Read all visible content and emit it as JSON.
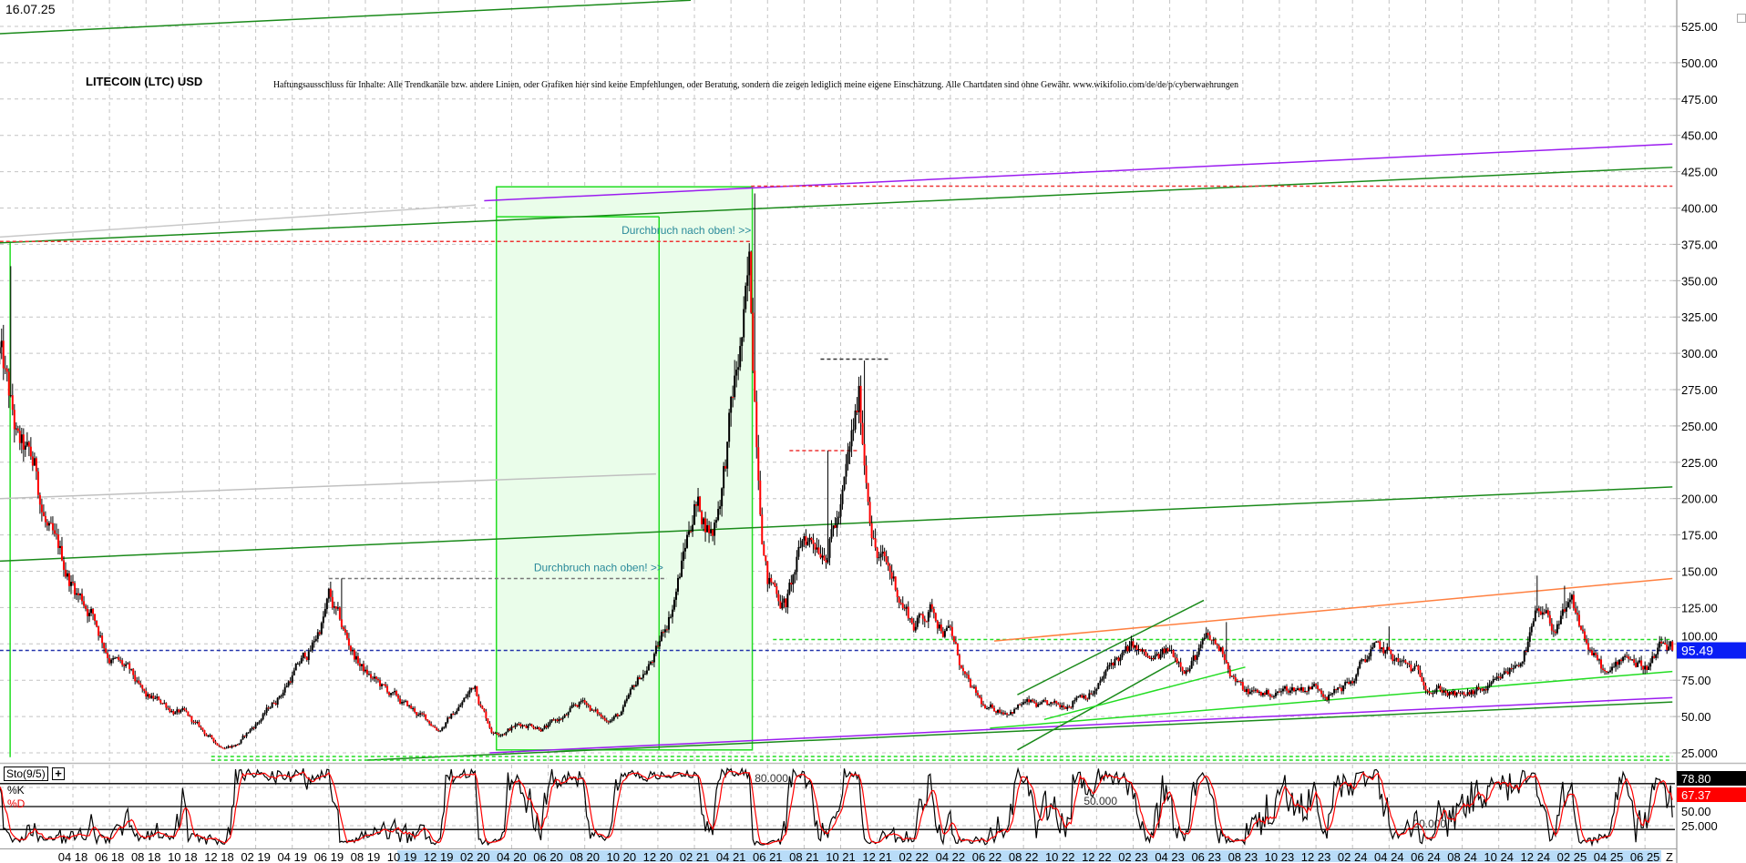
{
  "header": {
    "date": "16.07.25",
    "title": "LITECOIN (LTC) USD",
    "disclaimer": "Haftungsausschluss für Inhalte: Alle Trendkanäle bzw. andere Linien, oder Grafiken hier sind keine Empfehlungen, oder Beratung, sondern die zeigen lediglich meine eigene Einschätzung. Alle Chartdaten sind ohne Gewähr.  www.wikifolio.com/de/de/p/cyberwaehrungen"
  },
  "indicator": {
    "name": "Sto(9/5)",
    "plus": "+",
    "k_label": "%K",
    "d_label": "%D",
    "levels": [
      {
        "value": 80,
        "label": "80.000",
        "at": "2021-05-10"
      },
      {
        "value": 50,
        "label": "50.000",
        "at": "2022-11-10"
      },
      {
        "value": 20,
        "label": "20.000",
        "at": "2024-05-10"
      }
    ],
    "axis_labels": [
      "50.00",
      "25.000"
    ],
    "k_value": "78.80",
    "d_value": "67.37"
  },
  "chart_data": {
    "type": "candlestick",
    "title": "LITECOIN (LTC) USD",
    "ylim": [
      15,
      535
    ],
    "y_ticks": [
      "525.00",
      "500.00",
      "475.00",
      "450.00",
      "425.00",
      "400.00",
      "375.00",
      "350.00",
      "325.00",
      "300.00",
      "275.00",
      "250.00",
      "225.00",
      "200.00",
      "175.00",
      "150.00",
      "125.00",
      "100.00",
      "75.00",
      "50.00",
      "25.000"
    ],
    "x_ticks": [
      "04 18",
      "06 18",
      "08 18",
      "10 18",
      "12 18",
      "02 19",
      "04 19",
      "06 19",
      "08 19",
      "10 19",
      "12 19",
      "02 20",
      "04 20",
      "06 20",
      "08 20",
      "10 20",
      "12 20",
      "02 21",
      "04 21",
      "06 21",
      "08 21",
      "10 21",
      "12 21",
      "02 22",
      "04 22",
      "06 22",
      "08 22",
      "10 22",
      "12 22",
      "02 23",
      "04 23",
      "06 23",
      "08 23",
      "10 23",
      "12 23",
      "02 24",
      "04 24",
      "06 24",
      "08 24",
      "10 24",
      "12 24",
      "02 25",
      "04 25",
      "06 25"
    ],
    "x_end_label": "Z",
    "grid": true,
    "last_price": "95.49",
    "months": [
      "2017-12",
      "2018-01",
      "2018-02",
      "2018-03",
      "2018-04",
      "2018-05",
      "2018-06",
      "2018-07",
      "2018-08",
      "2018-09",
      "2018-10",
      "2018-11",
      "2018-12",
      "2019-01",
      "2019-02",
      "2019-03",
      "2019-04",
      "2019-05",
      "2019-06",
      "2019-07",
      "2019-08",
      "2019-09",
      "2019-10",
      "2019-11",
      "2019-12",
      "2020-01",
      "2020-02",
      "2020-03",
      "2020-04",
      "2020-05",
      "2020-06",
      "2020-07",
      "2020-08",
      "2020-09",
      "2020-10",
      "2020-11",
      "2020-12",
      "2021-01",
      "2021-02",
      "2021-03",
      "2021-04",
      "2021-05",
      "2021-06",
      "2021-07",
      "2021-08",
      "2021-09",
      "2021-10",
      "2021-11",
      "2021-12",
      "2022-01",
      "2022-02",
      "2022-03",
      "2022-04",
      "2022-05",
      "2022-06",
      "2022-07",
      "2022-08",
      "2022-09",
      "2022-10",
      "2022-11",
      "2022-12",
      "2023-01",
      "2023-02",
      "2023-03",
      "2023-04",
      "2023-05",
      "2023-06",
      "2023-07",
      "2023-08",
      "2023-09",
      "2023-10",
      "2023-11",
      "2023-12",
      "2024-01",
      "2024-02",
      "2024-03",
      "2024-04",
      "2024-05",
      "2024-06",
      "2024-07",
      "2024-08",
      "2024-09",
      "2024-10",
      "2024-11",
      "2024-12",
      "2025-01",
      "2025-02",
      "2025-03",
      "2025-04",
      "2025-05",
      "2025-06",
      "2025-07"
    ],
    "close": [
      300,
      230,
      210,
      160,
      140,
      125,
      95,
      80,
      60,
      58,
      52,
      40,
      30,
      32,
      45,
      60,
      80,
      95,
      130,
      100,
      80,
      68,
      58,
      50,
      42,
      55,
      72,
      40,
      44,
      46,
      44,
      50,
      60,
      48,
      52,
      75,
      95,
      140,
      200,
      180,
      260,
      340,
      150,
      130,
      170,
      175,
      195,
      260,
      165,
      140,
      115,
      125,
      110,
      70,
      52,
      55,
      60,
      55,
      54,
      68,
      70,
      88,
      95,
      85,
      92,
      88,
      100,
      92,
      68,
      65,
      67,
      70,
      72,
      68,
      75,
      95,
      90,
      82,
      75,
      70,
      62,
      66,
      70,
      85,
      115,
      110,
      120,
      95,
      75,
      95,
      85,
      95.49
    ],
    "peaks": [
      [
        "2017-12-19",
        360
      ],
      [
        "2019-06-22",
        145
      ],
      [
        "2021-05-10",
        410
      ],
      [
        "2021-09-10",
        233
      ],
      [
        "2021-11-10",
        295
      ],
      [
        "2023-07-03",
        115
      ],
      [
        "2024-03-30",
        112
      ],
      [
        "2024-12-05",
        147
      ],
      [
        "2025-01-20",
        140
      ]
    ],
    "trendlines": [
      {
        "from": [
          "2017-12-01",
          520
        ],
        "to": [
          "2021-01-25",
          543
        ],
        "color": "#1a8a1a",
        "style": "solid"
      },
      {
        "from": [
          "2017-12-01",
          376
        ],
        "to": [
          "2025-07-16",
          428
        ],
        "color": "#1a8a1a",
        "style": "solid"
      },
      {
        "from": [
          "2020-02-16",
          405
        ],
        "to": [
          "2025-07-16",
          444
        ],
        "color": "#9b1cf0",
        "style": "solid"
      },
      {
        "from": [
          "2021-05-04",
          415
        ],
        "to": [
          "2025-07-16",
          415
        ],
        "color": "#e33",
        "style": "dashed"
      },
      {
        "from": [
          "2017-12-01",
          377
        ],
        "to": [
          "2021-05-04",
          377
        ],
        "color": "#e33",
        "style": "dashed"
      },
      {
        "from": [
          "2017-12-01",
          380
        ],
        "to": [
          "2020-02-01",
          402
        ],
        "color": "#c8c8c8",
        "style": "solid"
      },
      {
        "from": [
          "2017-12-01",
          200
        ],
        "to": [
          "2020-11-28",
          217
        ],
        "color": "#c0c0c0",
        "style": "solid"
      },
      {
        "from": [
          "2017-12-01",
          157
        ],
        "to": [
          "2025-07-16",
          208
        ],
        "color": "#1a8a1a",
        "style": "solid"
      },
      {
        "from": [
          "2019-06-01",
          145
        ],
        "to": [
          "2020-12-16",
          145
        ],
        "color": "#777",
        "style": "dashed"
      },
      {
        "from": [
          "2021-07-07",
          233
        ],
        "to": [
          "2021-10-28",
          233
        ],
        "color": "#e33",
        "style": "dashed"
      },
      {
        "from": [
          "2021-08-28",
          296
        ],
        "to": [
          "2021-12-22",
          296
        ],
        "color": "#333",
        "style": "dashed"
      },
      {
        "from": [
          "2021-06-10",
          103
        ],
        "to": [
          "2025-07-16",
          103
        ],
        "color": "#22dd22",
        "style": "dashed"
      },
      {
        "from": [
          "2017-12-01",
          95.49
        ],
        "to": [
          "2025-07-16",
          95.49
        ],
        "color": "#2233aa",
        "style": "dashed"
      },
      {
        "from": [
          "2022-06-13",
          102
        ],
        "to": [
          "2025-07-16",
          145
        ],
        "color": "#ff8040",
        "style": "solid"
      },
      {
        "from": [
          "2022-06-06",
          42
        ],
        "to": [
          "2025-07-16",
          81
        ],
        "color": "#22dd22",
        "style": "solid"
      },
      {
        "from": [
          "2020-02-25",
          25
        ],
        "to": [
          "2025-07-16",
          63
        ],
        "color": "#9b1cf0",
        "style": "solid"
      },
      {
        "from": [
          "2019-08-04",
          20
        ],
        "to": [
          "2025-07-16",
          60
        ],
        "color": "#1a8a1a",
        "style": "solid"
      },
      {
        "from": [
          "2018-11-18",
          22.5
        ],
        "to": [
          "2025-07-16",
          22.5
        ],
        "color": "#22dd22",
        "style": "dashed"
      },
      {
        "from": [
          "2018-11-18",
          20
        ],
        "to": [
          "2025-07-16",
          20
        ],
        "color": "#22dd22",
        "style": "dashed"
      },
      {
        "from": [
          "2022-07-21",
          65
        ],
        "to": [
          "2023-05-27",
          130
        ],
        "color": "#1a8a1a",
        "style": "solid"
      },
      {
        "from": [
          "2022-07-21",
          27
        ],
        "to": [
          "2023-04-15",
          89
        ],
        "color": "#1a8a1a",
        "style": "solid"
      },
      {
        "from": [
          "2022-09-05",
          48
        ],
        "to": [
          "2023-08-05",
          84
        ],
        "color": "#22dd22",
        "style": "solid"
      }
    ],
    "zones": [
      {
        "from": [
          "2020-03-06",
          414.6
        ],
        "to": [
          "2021-05-06",
          27
        ],
        "divider": "2020-12-03",
        "divider_top": 394,
        "color": "#22dd22",
        "fill": "#eafdea"
      }
    ],
    "verticals": [
      {
        "at": "2017-12-18",
        "from": 22,
        "to": 377,
        "color": "#22dd22"
      }
    ],
    "annotations": [
      {
        "text": "Durchbruch nach oben! >>",
        "at": [
          "2021-05-04",
          382
        ],
        "color": "#2a8a9a"
      },
      {
        "text": "Durchbruch nach oben! >>",
        "at": [
          "2020-12-10",
          150
        ],
        "color": "#2a8a9a"
      }
    ],
    "colors": {
      "up": "#000000",
      "down": "#ff0000",
      "last_price_bg": "#0a1ef5",
      "k": "#000000",
      "d": "#ff0000",
      "date_band": "#b9dcf8"
    }
  }
}
